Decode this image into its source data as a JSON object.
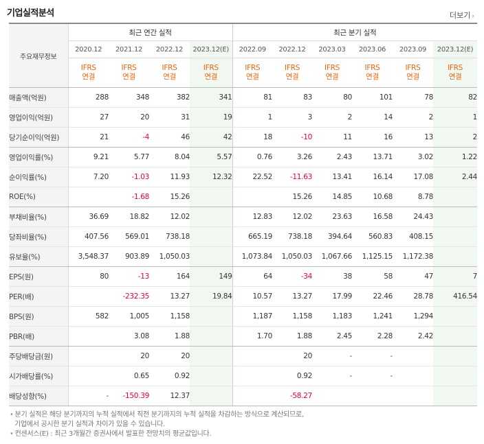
{
  "title": "기업실적분석",
  "more_label": "더보기",
  "header": {
    "row_header": "주요재무정보",
    "annual_group": "최근 연간 실적",
    "quarter_group": "최근 분기 실적",
    "annual_periods": [
      "2020.12",
      "2021.12",
      "2022.12",
      "2023.12(E)"
    ],
    "quarter_periods": [
      "2022.09",
      "2022.12",
      "2023.03",
      "2023.06",
      "2023.09",
      "2023.12(E)"
    ],
    "ifrs_top": "IFRS",
    "ifrs_bottom": "연결"
  },
  "rows": [
    {
      "label": "매출액(억원)",
      "values": [
        "288",
        "348",
        "382",
        "341",
        "81",
        "83",
        "80",
        "101",
        "78",
        "82"
      ]
    },
    {
      "label": "영업이익(억원)",
      "values": [
        "27",
        "20",
        "31",
        "19",
        "1",
        "3",
        "2",
        "14",
        "2",
        "1"
      ]
    },
    {
      "label": "당기순이익(억원)",
      "values": [
        "21",
        "-4",
        "46",
        "42",
        "18",
        "-10",
        "11",
        "16",
        "13",
        "2"
      ]
    },
    {
      "label": "영업이익률(%)",
      "values": [
        "9.21",
        "5.77",
        "8.04",
        "5.57",
        "0.76",
        "3.26",
        "2.43",
        "13.71",
        "3.02",
        "1.22"
      ]
    },
    {
      "label": "순이익률(%)",
      "values": [
        "7.20",
        "-1.03",
        "11.93",
        "12.32",
        "22.52",
        "-11.63",
        "13.41",
        "16.14",
        "17.08",
        "2.44"
      ]
    },
    {
      "label": "ROE(%)",
      "values": [
        "",
        "-1.68",
        "15.26",
        "",
        "",
        "15.26",
        "14.85",
        "10.68",
        "8.78",
        ""
      ]
    },
    {
      "label": "부채비율(%)",
      "values": [
        "36.69",
        "18.82",
        "12.02",
        "",
        "12.83",
        "12.02",
        "23.63",
        "16.58",
        "24.43",
        ""
      ]
    },
    {
      "label": "당좌비율(%)",
      "values": [
        "407.56",
        "569.01",
        "738.18",
        "",
        "665.19",
        "738.18",
        "394.64",
        "560.83",
        "408.15",
        ""
      ]
    },
    {
      "label": "유보율(%)",
      "values": [
        "3,548.37",
        "903.89",
        "1,050.03",
        "",
        "1,073.84",
        "1,050.03",
        "1,067.66",
        "1,125.15",
        "1,172.38",
        ""
      ]
    },
    {
      "label": "EPS(원)",
      "values": [
        "80",
        "-13",
        "164",
        "149",
        "64",
        "-34",
        "38",
        "58",
        "47",
        "7"
      ]
    },
    {
      "label": "PER(배)",
      "values": [
        "",
        "-232.35",
        "13.27",
        "19.84",
        "10.57",
        "13.27",
        "17.99",
        "22.46",
        "28.78",
        "416.54"
      ]
    },
    {
      "label": "BPS(원)",
      "values": [
        "582",
        "1,005",
        "1,158",
        "",
        "1,187",
        "1,158",
        "1,183",
        "1,241",
        "1,294",
        ""
      ]
    },
    {
      "label": "PBR(배)",
      "values": [
        "",
        "3.08",
        "1.88",
        "",
        "1.70",
        "1.88",
        "2.45",
        "2.28",
        "2.42",
        ""
      ]
    },
    {
      "label": "주당배당금(원)",
      "values": [
        "",
        "20",
        "20",
        "",
        "",
        "20",
        "-",
        "-",
        "",
        ""
      ]
    },
    {
      "label": "시가배당률(%)",
      "values": [
        "",
        "0.65",
        "0.92",
        "",
        "",
        "0.92",
        "-",
        "-",
        "",
        ""
      ]
    },
    {
      "label": "배당성향(%)",
      "values": [
        "-",
        "-150.39",
        "12.37",
        "",
        "",
        "-58.27",
        "",
        "",
        "",
        ""
      ]
    }
  ],
  "notes": [
    "분기 실적은 해당 분기까지의 누적 실적에서 직전 분기까지의 누적 실적을 차감하는 방식으로 계산되므로,",
    "기업에서 공시한 분기 실적과 차이가 있을 수 있습니다.",
    "컨센서스(E) : 최근 3개월간 증권사에서 발표한 전망치의 평균값입니다."
  ],
  "colors": {
    "negative": "#e4002b",
    "ifrs": "#e8640c",
    "estimate_bg": "#f1f8f2",
    "header_bg": "#f4f4f4"
  }
}
